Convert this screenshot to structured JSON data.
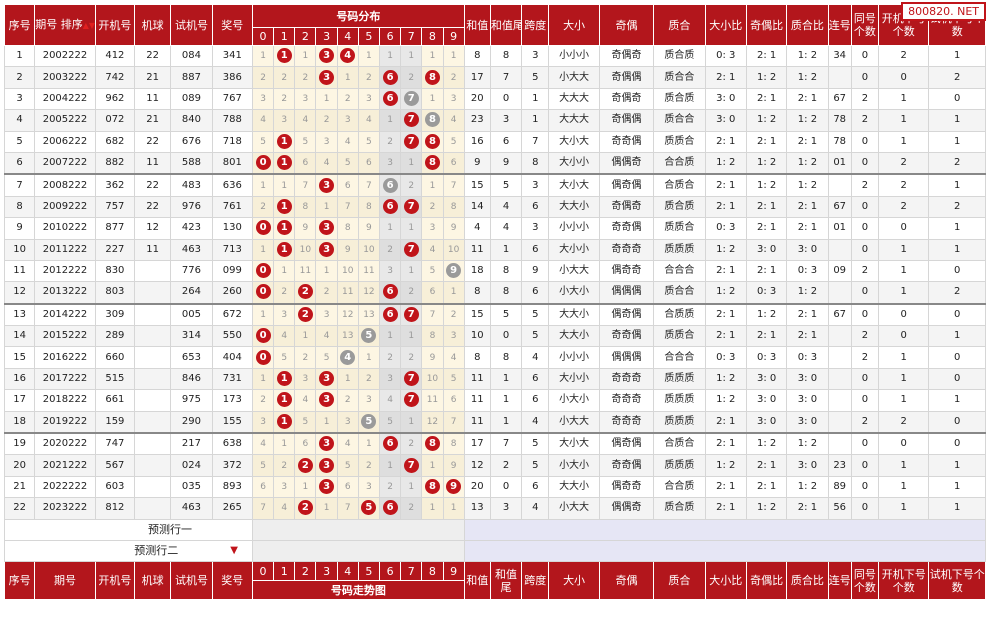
{
  "headers": {
    "seq": "序号",
    "period": "期号",
    "sort_label": "排序",
    "sort_arrows": "▲▼",
    "open": "开机号",
    "machine": "机球",
    "trial": "试机号",
    "prize": "奖号",
    "dist": "号码分布",
    "sum": "和值",
    "sum_tail": "和值尾",
    "span": "跨度",
    "size": "大小",
    "oddeven": "奇偶",
    "primecomp": "质合",
    "size_ratio": "大小比",
    "oe_ratio": "奇偶比",
    "pc_ratio": "质合比",
    "consec": "连号",
    "same": "同号个数",
    "open_next": "开机下号个数",
    "trial_next": "试机下号个数",
    "digits": [
      "0",
      "1",
      "2",
      "3",
      "4",
      "5",
      "6",
      "7",
      "8",
      "9"
    ],
    "footer_dist": "号码走势图"
  },
  "watermark": "800820. NET",
  "predict": {
    "row1": "预测行一",
    "row2": "预测行二",
    "arrow": "▼"
  },
  "rows": [
    {
      "seq": "1",
      "period": "2002222",
      "open": "412",
      "machine": "22",
      "trial": "084",
      "prize": "341",
      "sum": "8",
      "tail": "8",
      "span": "3",
      "size": "小小小",
      "oe": "奇偶奇",
      "pc": "质合质",
      "sr": "0: 3",
      "or": "2: 1",
      "pr": "1: 2",
      "consec": "34",
      "same": "0",
      "on": "2",
      "tn": "1",
      "dist": [
        "1",
        "1",
        "1",
        "3",
        "4",
        "1",
        "1",
        "1",
        "1",
        "1"
      ],
      "balls": [
        1,
        3,
        4
      ],
      "grays": []
    },
    {
      "seq": "2",
      "period": "2003222",
      "open": "742",
      "machine": "21",
      "trial": "887",
      "prize": "386",
      "sum": "17",
      "tail": "7",
      "span": "5",
      "size": "小大大",
      "oe": "奇偶偶",
      "pc": "质合合",
      "sr": "2: 1",
      "or": "1: 2",
      "pr": "1: 2",
      "consec": "",
      "same": "0",
      "on": "0",
      "tn": "2",
      "dist": [
        "2",
        "2",
        "2",
        "3",
        "1",
        "2",
        "6",
        "2",
        "8",
        "2"
      ],
      "balls": [
        3,
        6,
        8
      ],
      "grays": []
    },
    {
      "seq": "3",
      "period": "2004222",
      "open": "962",
      "machine": "11",
      "trial": "089",
      "prize": "767",
      "sum": "20",
      "tail": "0",
      "span": "1",
      "size": "大大大",
      "oe": "奇偶奇",
      "pc": "质合质",
      "sr": "3: 0",
      "or": "2: 1",
      "pr": "2: 1",
      "consec": "67",
      "same": "2",
      "on": "1",
      "tn": "0",
      "dist": [
        "3",
        "2",
        "3",
        "1",
        "2",
        "3",
        "6",
        "7",
        "1",
        "3"
      ],
      "balls": [
        6
      ],
      "grays": [
        7
      ]
    },
    {
      "seq": "4",
      "period": "2005222",
      "open": "072",
      "machine": "21",
      "trial": "840",
      "prize": "788",
      "sum": "23",
      "tail": "3",
      "span": "1",
      "size": "大大大",
      "oe": "奇偶偶",
      "pc": "质合合",
      "sr": "3: 0",
      "or": "1: 2",
      "pr": "1: 2",
      "consec": "78",
      "same": "2",
      "on": "1",
      "tn": "1",
      "dist": [
        "4",
        "3",
        "4",
        "2",
        "3",
        "4",
        "1",
        "7",
        "8",
        "4"
      ],
      "balls": [
        7
      ],
      "grays": [
        8
      ]
    },
    {
      "seq": "5",
      "period": "2006222",
      "open": "682",
      "machine": "22",
      "trial": "676",
      "prize": "718",
      "sum": "16",
      "tail": "6",
      "span": "7",
      "size": "大小大",
      "oe": "奇奇偶",
      "pc": "质质合",
      "sr": "2: 1",
      "or": "2: 1",
      "pr": "2: 1",
      "consec": "78",
      "same": "0",
      "on": "1",
      "tn": "1",
      "dist": [
        "5",
        "1",
        "5",
        "3",
        "4",
        "5",
        "2",
        "7",
        "8",
        "5"
      ],
      "balls": [
        1,
        7,
        8
      ],
      "grays": []
    },
    {
      "seq": "6",
      "period": "2007222",
      "open": "882",
      "machine": "11",
      "trial": "588",
      "prize": "801",
      "sum": "9",
      "tail": "9",
      "span": "8",
      "size": "大小小",
      "oe": "偶偶奇",
      "pc": "合合质",
      "sr": "1: 2",
      "or": "1: 2",
      "pr": "1: 2",
      "consec": "01",
      "same": "0",
      "on": "2",
      "tn": "2",
      "dist": [
        "0",
        "1",
        "6",
        "4",
        "5",
        "6",
        "3",
        "1",
        "8",
        "6"
      ],
      "balls": [
        0,
        1,
        8
      ],
      "grays": []
    },
    {
      "seq": "7",
      "period": "2008222",
      "open": "362",
      "machine": "22",
      "trial": "483",
      "prize": "636",
      "sum": "15",
      "tail": "5",
      "span": "3",
      "size": "大小大",
      "oe": "偶奇偶",
      "pc": "合质合",
      "sr": "2: 1",
      "or": "1: 2",
      "pr": "1: 2",
      "consec": "",
      "same": "2",
      "on": "2",
      "tn": "1",
      "dist": [
        "1",
        "1",
        "7",
        "3",
        "6",
        "7",
        "6",
        "2",
        "1",
        "7"
      ],
      "balls": [
        3
      ],
      "grays": [
        6
      ]
    },
    {
      "seq": "8",
      "period": "2009222",
      "open": "757",
      "machine": "22",
      "trial": "976",
      "prize": "761",
      "sum": "14",
      "tail": "4",
      "span": "6",
      "size": "大大小",
      "oe": "奇偶奇",
      "pc": "质合质",
      "sr": "2: 1",
      "or": "2: 1",
      "pr": "2: 1",
      "consec": "67",
      "same": "0",
      "on": "2",
      "tn": "2",
      "dist": [
        "2",
        "1",
        "8",
        "1",
        "7",
        "8",
        "6",
        "7",
        "2",
        "8"
      ],
      "balls": [
        1,
        6,
        7
      ],
      "grays": []
    },
    {
      "seq": "9",
      "period": "2010222",
      "open": "877",
      "machine": "12",
      "trial": "423",
      "prize": "130",
      "sum": "4",
      "tail": "4",
      "span": "3",
      "size": "小小小",
      "oe": "奇奇偶",
      "pc": "质质合",
      "sr": "0: 3",
      "or": "2: 1",
      "pr": "2: 1",
      "consec": "01",
      "same": "0",
      "on": "0",
      "tn": "1",
      "dist": [
        "0",
        "1",
        "9",
        "3",
        "8",
        "9",
        "1",
        "1",
        "3",
        "9"
      ],
      "balls": [
        0,
        1,
        3
      ],
      "grays": []
    },
    {
      "seq": "10",
      "period": "2011222",
      "open": "227",
      "machine": "11",
      "trial": "463",
      "prize": "713",
      "sum": "11",
      "tail": "1",
      "span": "6",
      "size": "大小小",
      "oe": "奇奇奇",
      "pc": "质质质",
      "sr": "1: 2",
      "or": "3: 0",
      "pr": "3: 0",
      "consec": "",
      "same": "0",
      "on": "1",
      "tn": "1",
      "dist": [
        "1",
        "1",
        "10",
        "3",
        "9",
        "10",
        "2",
        "7",
        "4",
        "10"
      ],
      "balls": [
        1,
        3,
        7
      ],
      "grays": []
    },
    {
      "seq": "11",
      "period": "2012222",
      "open": "830",
      "machine": "",
      "trial": "776",
      "prize": "099",
      "sum": "18",
      "tail": "8",
      "span": "9",
      "size": "小大大",
      "oe": "偶奇奇",
      "pc": "合合合",
      "sr": "2: 1",
      "or": "2: 1",
      "pr": "0: 3",
      "consec": "09",
      "same": "2",
      "on": "1",
      "tn": "0",
      "dist": [
        "0",
        "1",
        "11",
        "1",
        "10",
        "11",
        "3",
        "1",
        "5",
        "9"
      ],
      "balls": [
        0
      ],
      "grays": [
        9
      ]
    },
    {
      "seq": "12",
      "period": "2013222",
      "open": "803",
      "machine": "",
      "trial": "264",
      "prize": "260",
      "sum": "8",
      "tail": "8",
      "span": "6",
      "size": "小大小",
      "oe": "偶偶偶",
      "pc": "质合合",
      "sr": "1: 2",
      "or": "0: 3",
      "pr": "1: 2",
      "consec": "",
      "same": "0",
      "on": "1",
      "tn": "2",
      "dist": [
        "0",
        "2",
        "2",
        "2",
        "11",
        "12",
        "6",
        "2",
        "6",
        "1"
      ],
      "balls": [
        0,
        2,
        6
      ],
      "grays": []
    },
    {
      "seq": "13",
      "period": "2014222",
      "open": "309",
      "machine": "",
      "trial": "005",
      "prize": "672",
      "sum": "15",
      "tail": "5",
      "span": "5",
      "size": "大大小",
      "oe": "偶奇偶",
      "pc": "合质质",
      "sr": "2: 1",
      "or": "1: 2",
      "pr": "2: 1",
      "consec": "67",
      "same": "0",
      "on": "0",
      "tn": "0",
      "dist": [
        "1",
        "3",
        "2",
        "3",
        "12",
        "13",
        "6",
        "7",
        "7",
        "2"
      ],
      "balls": [
        2,
        6,
        7
      ],
      "grays": []
    },
    {
      "seq": "14",
      "period": "2015222",
      "open": "289",
      "machine": "",
      "trial": "314",
      "prize": "550",
      "sum": "10",
      "tail": "0",
      "span": "5",
      "size": "大大小",
      "oe": "奇奇偶",
      "pc": "质质合",
      "sr": "2: 1",
      "or": "2: 1",
      "pr": "2: 1",
      "consec": "",
      "same": "2",
      "on": "0",
      "tn": "1",
      "dist": [
        "0",
        "4",
        "1",
        "4",
        "13",
        "5",
        "1",
        "1",
        "8",
        "3"
      ],
      "balls": [
        0
      ],
      "grays": [
        5
      ]
    },
    {
      "seq": "15",
      "period": "2016222",
      "open": "660",
      "machine": "",
      "trial": "653",
      "prize": "404",
      "sum": "8",
      "tail": "8",
      "span": "4",
      "size": "小小小",
      "oe": "偶偶偶",
      "pc": "合合合",
      "sr": "0: 3",
      "or": "0: 3",
      "pr": "0: 3",
      "consec": "",
      "same": "2",
      "on": "1",
      "tn": "0",
      "dist": [
        "0",
        "5",
        "2",
        "5",
        "4",
        "1",
        "2",
        "2",
        "9",
        "4"
      ],
      "balls": [
        0
      ],
      "grays": [
        4
      ]
    },
    {
      "seq": "16",
      "period": "2017222",
      "open": "515",
      "machine": "",
      "trial": "846",
      "prize": "731",
      "sum": "11",
      "tail": "1",
      "span": "6",
      "size": "大小小",
      "oe": "奇奇奇",
      "pc": "质质质",
      "sr": "1: 2",
      "or": "3: 0",
      "pr": "3: 0",
      "consec": "",
      "same": "0",
      "on": "1",
      "tn": "0",
      "dist": [
        "1",
        "1",
        "3",
        "3",
        "1",
        "2",
        "3",
        "7",
        "10",
        "5"
      ],
      "balls": [
        1,
        3,
        7
      ],
      "grays": []
    },
    {
      "seq": "17",
      "period": "2018222",
      "open": "661",
      "machine": "",
      "trial": "975",
      "prize": "173",
      "sum": "11",
      "tail": "1",
      "span": "6",
      "size": "小大小",
      "oe": "奇奇奇",
      "pc": "质质质",
      "sr": "1: 2",
      "or": "3: 0",
      "pr": "3: 0",
      "consec": "",
      "same": "0",
      "on": "1",
      "tn": "1",
      "dist": [
        "2",
        "1",
        "4",
        "3",
        "2",
        "3",
        "4",
        "7",
        "11",
        "6"
      ],
      "balls": [
        1,
        3,
        7
      ],
      "grays": []
    },
    {
      "seq": "18",
      "period": "2019222",
      "open": "159",
      "machine": "",
      "trial": "290",
      "prize": "155",
      "sum": "11",
      "tail": "1",
      "span": "4",
      "size": "小大大",
      "oe": "奇奇奇",
      "pc": "质质质",
      "sr": "2: 1",
      "or": "3: 0",
      "pr": "3: 0",
      "consec": "",
      "same": "2",
      "on": "2",
      "tn": "0",
      "dist": [
        "3",
        "1",
        "5",
        "1",
        "3",
        "5",
        "5",
        "1",
        "12",
        "7"
      ],
      "balls": [
        1
      ],
      "grays": [
        5
      ]
    },
    {
      "seq": "19",
      "period": "2020222",
      "open": "747",
      "machine": "",
      "trial": "217",
      "prize": "638",
      "sum": "17",
      "tail": "7",
      "span": "5",
      "size": "大小大",
      "oe": "偶奇偶",
      "pc": "合质合",
      "sr": "2: 1",
      "or": "1: 2",
      "pr": "1: 2",
      "consec": "",
      "same": "0",
      "on": "0",
      "tn": "0",
      "dist": [
        "4",
        "1",
        "6",
        "3",
        "4",
        "1",
        "6",
        "2",
        "8",
        "8"
      ],
      "balls": [
        3,
        6,
        8
      ],
      "grays": []
    },
    {
      "seq": "20",
      "period": "2021222",
      "open": "567",
      "machine": "",
      "trial": "024",
      "prize": "372",
      "sum": "12",
      "tail": "2",
      "span": "5",
      "size": "小大小",
      "oe": "奇奇偶",
      "pc": "质质质",
      "sr": "1: 2",
      "or": "2: 1",
      "pr": "3: 0",
      "consec": "23",
      "same": "0",
      "on": "1",
      "tn": "1",
      "dist": [
        "5",
        "2",
        "2",
        "3",
        "5",
        "2",
        "1",
        "7",
        "1",
        "9"
      ],
      "balls": [
        2,
        3,
        7
      ],
      "grays": []
    },
    {
      "seq": "21",
      "period": "2022222",
      "open": "603",
      "machine": "",
      "trial": "035",
      "prize": "893",
      "sum": "20",
      "tail": "0",
      "span": "6",
      "size": "大大小",
      "oe": "偶奇奇",
      "pc": "合合质",
      "sr": "2: 1",
      "or": "2: 1",
      "pr": "1: 2",
      "consec": "89",
      "same": "0",
      "on": "1",
      "tn": "1",
      "dist": [
        "6",
        "3",
        "1",
        "3",
        "6",
        "3",
        "2",
        "1",
        "8",
        "9"
      ],
      "balls": [
        3,
        8,
        9
      ],
      "grays": []
    },
    {
      "seq": "22",
      "period": "2023222",
      "open": "812",
      "machine": "",
      "trial": "463",
      "prize": "265",
      "sum": "13",
      "tail": "3",
      "span": "4",
      "size": "小大大",
      "oe": "偶偶奇",
      "pc": "质合质",
      "sr": "2: 1",
      "or": "1: 2",
      "pr": "2: 1",
      "consec": "56",
      "same": "0",
      "on": "1",
      "tn": "1",
      "dist": [
        "7",
        "4",
        "2",
        "1",
        "7",
        "5",
        "6",
        "2",
        "1",
        "1"
      ],
      "balls": [
        2,
        5,
        6
      ],
      "grays": []
    }
  ]
}
